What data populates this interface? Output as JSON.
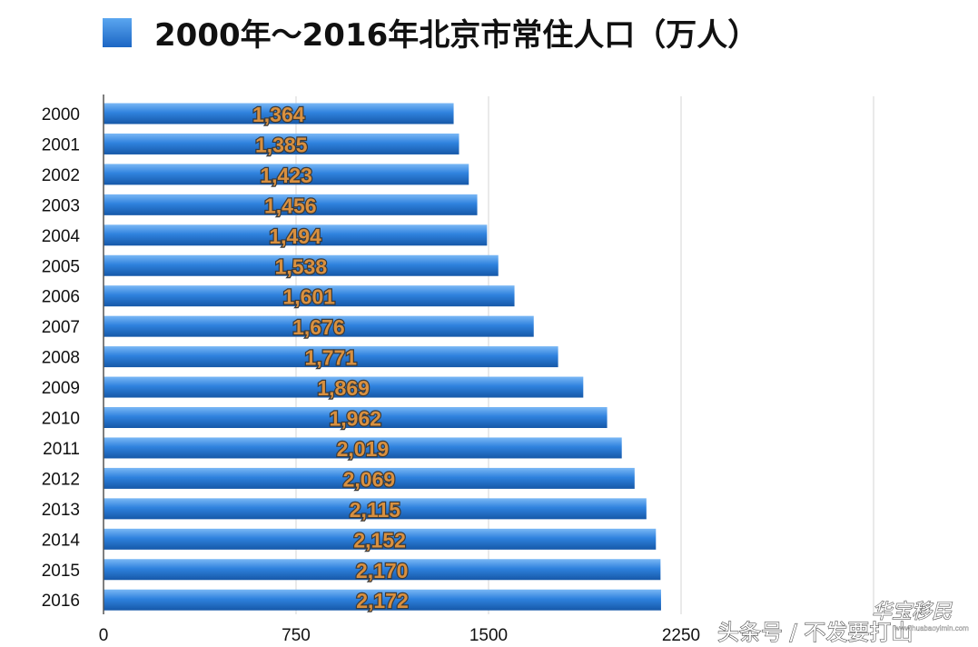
{
  "chart_data": {
    "type": "bar",
    "orientation": "horizontal",
    "title": "2000年～2016年北京市常住人口（万人）",
    "categories": [
      "2000",
      "2001",
      "2002",
      "2003",
      "2004",
      "2005",
      "2006",
      "2007",
      "2008",
      "2009",
      "2010",
      "2011",
      "2012",
      "2013",
      "2014",
      "2015",
      "2016"
    ],
    "values": [
      1364,
      1385,
      1423,
      1456,
      1494,
      1538,
      1601,
      1676,
      1771,
      1869,
      1962,
      2019,
      2069,
      2115,
      2152,
      2170,
      2172
    ],
    "data_labels": [
      "1,364",
      "1,385",
      "1,423",
      "1,456",
      "1,494",
      "1,538",
      "1,601",
      "1,676",
      "1,771",
      "1,869",
      "1,962",
      "2,019",
      "2,069",
      "2,115",
      "2,152",
      "2,170",
      "2,172"
    ],
    "xticks": [
      0,
      750,
      1500,
      2250
    ],
    "xtick_labels": [
      "0",
      "750",
      "1500",
      "2250"
    ],
    "xlim": [
      0,
      3000
    ],
    "xlabel": "",
    "ylabel": "",
    "grid": "vertical gridlines",
    "legend": "top-left",
    "colors": {
      "bar": "#2f82de",
      "bar_light": "#7ab8f5",
      "bar_dark": "#1658a8",
      "legend_swatch": "#2a7fe0",
      "data_label_fill": "#d9903f",
      "data_label_stroke": "#3a3a3a",
      "grid": "#d6d6d6",
      "axis": "#555555"
    }
  },
  "watermark": {
    "source_text": "头条号 / 不发要打山",
    "logo_text": "华宝移民",
    "logo_url_text": "www.huabaoyimin.com"
  }
}
